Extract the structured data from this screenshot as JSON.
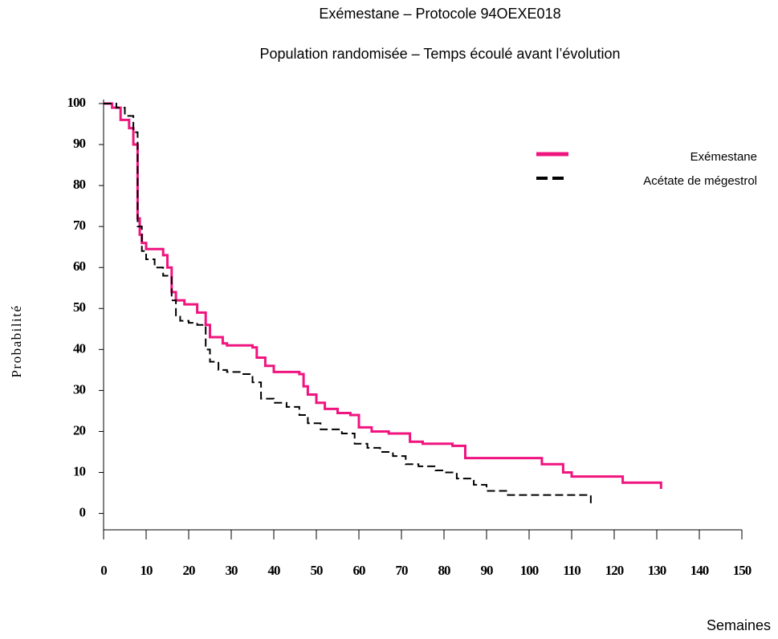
{
  "chart_data": {
    "type": "step",
    "title": "Exémestane – Protocole 94OEXE018",
    "subtitle": "Population randomisée – Temps écoulé avant l’évolution",
    "x_label": "Semaines",
    "y_label": "Probabilité",
    "xlim": [
      0,
      150
    ],
    "xticks": [
      0,
      10,
      20,
      30,
      40,
      50,
      60,
      70,
      80,
      90,
      100,
      110,
      120,
      130,
      140,
      150
    ],
    "ylim": [
      -4,
      100
    ],
    "yticks": [
      0,
      10,
      20,
      30,
      40,
      50,
      60,
      70,
      80,
      90,
      100
    ],
    "legend": "upper right",
    "series": [
      {
        "name": "Exémestane",
        "color": "#f0147f",
        "dashed": false,
        "x": [
          0,
          2,
          4,
          6,
          7,
          8,
          8.5,
          9,
          10,
          14,
          15,
          16,
          17,
          19,
          22,
          24,
          25,
          28,
          29,
          35,
          36,
          38,
          40,
          46,
          47,
          48,
          50,
          52,
          55,
          58,
          60,
          63,
          67,
          72,
          75,
          82,
          85,
          103,
          108,
          110,
          122,
          131
        ],
        "values": [
          100,
          99,
          96,
          94,
          90,
          72,
          68,
          66,
          64.5,
          63,
          60,
          54,
          52,
          51,
          49,
          46,
          43,
          41.5,
          41,
          40.5,
          38,
          36,
          34.5,
          34,
          31,
          29,
          27,
          25.5,
          24.5,
          24,
          21,
          20,
          19.5,
          17.5,
          17,
          16.5,
          13.5,
          12,
          10,
          9,
          7.5,
          6
        ]
      },
      {
        "name": "Acétate de mégestrol",
        "color": "#000000",
        "dashed": true,
        "x": [
          0,
          3,
          5,
          7,
          8,
          9,
          10,
          12,
          14,
          16,
          17,
          18,
          20,
          22,
          24,
          25,
          27,
          29,
          32,
          35,
          37,
          40,
          43,
          46,
          48,
          51,
          56,
          59,
          62,
          65,
          68,
          71,
          74,
          78,
          80,
          83,
          87,
          90,
          95,
          114.5
        ],
        "values": [
          100,
          99,
          97,
          93,
          70,
          64,
          62,
          60,
          58,
          52,
          48,
          47,
          46.5,
          46,
          40,
          37,
          35,
          34.5,
          34,
          32,
          28,
          27,
          26,
          24,
          22,
          20.5,
          19.5,
          17,
          16,
          15,
          14,
          12,
          11.5,
          10.5,
          10,
          8.5,
          7,
          5.5,
          4.5,
          2.5
        ]
      }
    ]
  }
}
